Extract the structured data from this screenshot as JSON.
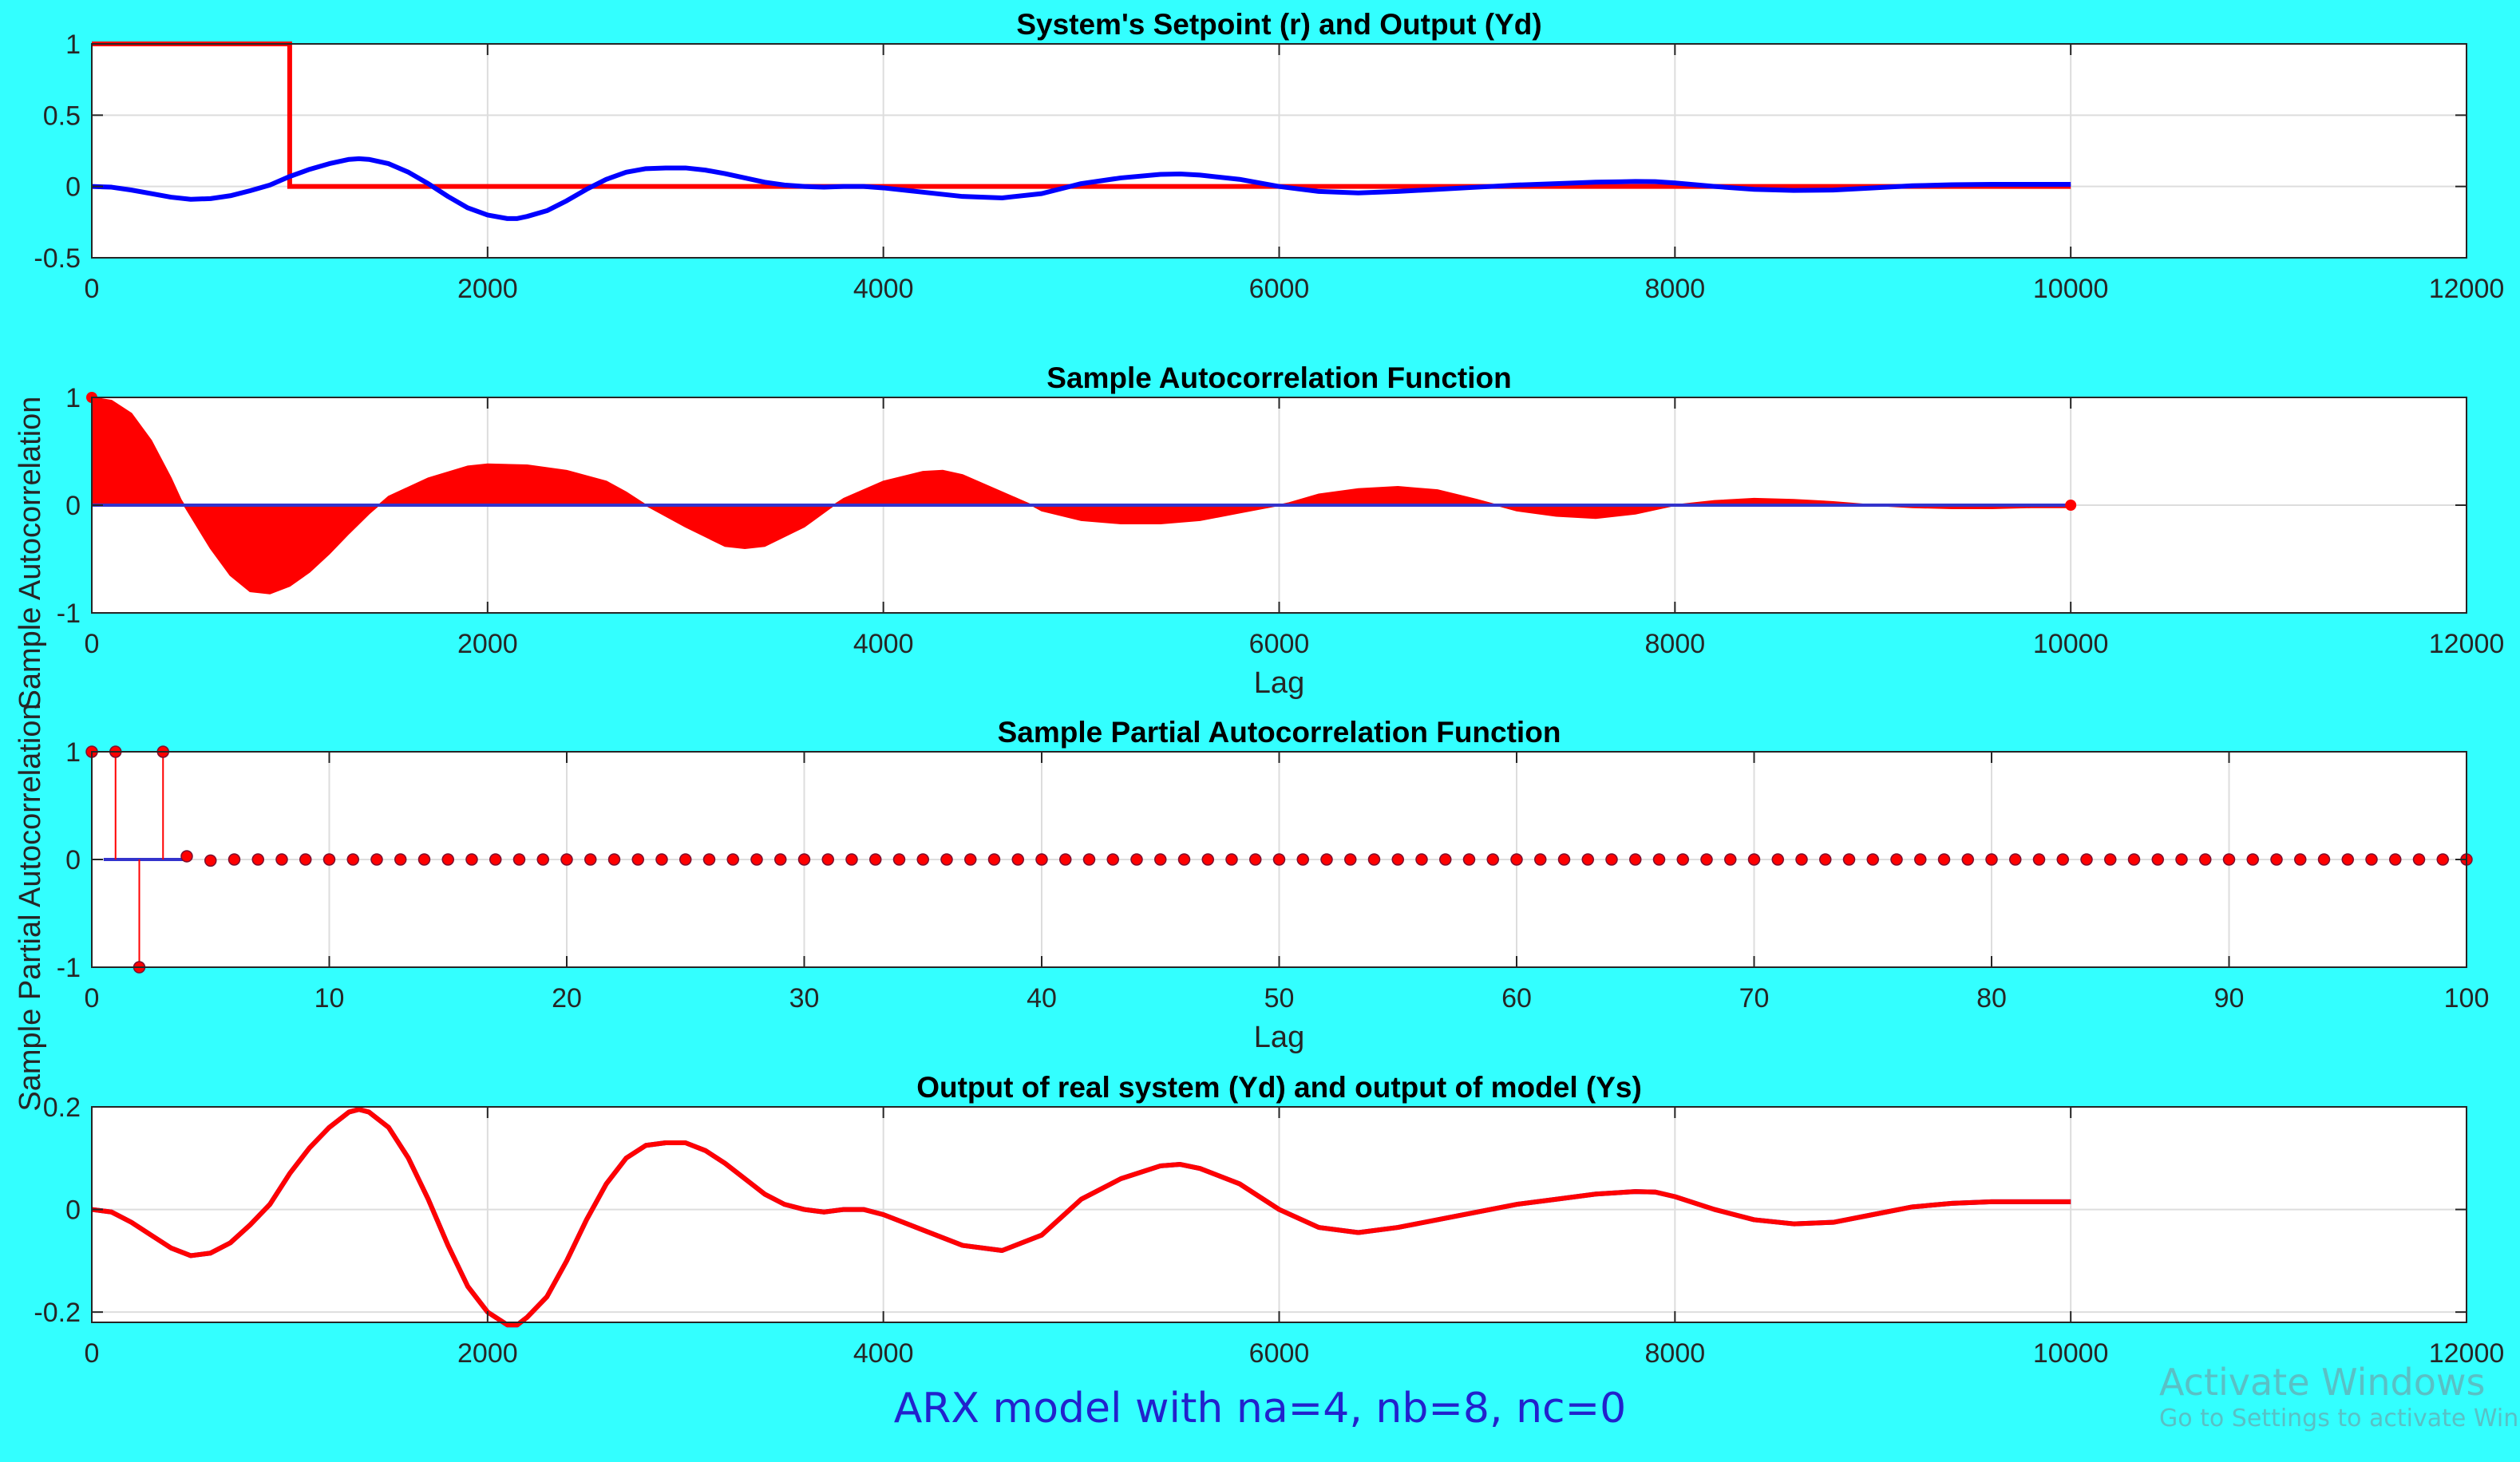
{
  "chart_data": [
    {
      "id": "setpoint_output",
      "type": "line",
      "title": "System's Setpoint (r) and Output (Yd)",
      "xlabel": "",
      "ylabel": "",
      "xlim": [
        0,
        12000
      ],
      "ylim": [
        -0.5,
        1
      ],
      "xticks": [
        0,
        2000,
        4000,
        6000,
        8000,
        10000,
        12000
      ],
      "yticks": [
        -0.5,
        0,
        0.5,
        1
      ],
      "yticklabels": [
        "-0.5",
        "0",
        "0.5",
        "1"
      ],
      "grid": true,
      "series": [
        {
          "color": "#FF0000",
          "style": "step",
          "x": [
            0,
            1000,
            1000,
            10000
          ],
          "y": [
            1,
            1,
            0,
            0
          ]
        },
        {
          "color": "#0000FF",
          "x": [
            0,
            100,
            200,
            300,
            400,
            500,
            600,
            700,
            800,
            900,
            1000,
            1100,
            1200,
            1300,
            1350,
            1400,
            1500,
            1600,
            1700,
            1800,
            1900,
            2000,
            2100,
            2150,
            2200,
            2300,
            2400,
            2500,
            2600,
            2700,
            2800,
            2900,
            3000,
            3100,
            3200,
            3300,
            3400,
            3500,
            3600,
            3700,
            3800,
            3900,
            4000,
            4200,
            4400,
            4600,
            4800,
            5000,
            5200,
            5400,
            5500,
            5600,
            5800,
            6000,
            6200,
            6400,
            6600,
            6800,
            7000,
            7200,
            7400,
            7600,
            7800,
            7900,
            8000,
            8200,
            8400,
            8600,
            8800,
            9000,
            9200,
            9400,
            9600,
            9800,
            10000
          ],
          "y": [
            0,
            -0.005,
            -0.025,
            -0.05,
            -0.075,
            -0.09,
            -0.085,
            -0.065,
            -0.03,
            0.01,
            0.07,
            0.12,
            0.16,
            0.19,
            0.195,
            0.19,
            0.16,
            0.1,
            0.02,
            -0.07,
            -0.15,
            -0.2,
            -0.225,
            -0.225,
            -0.21,
            -0.17,
            -0.1,
            -0.02,
            0.05,
            0.1,
            0.125,
            0.13,
            0.13,
            0.115,
            0.09,
            0.06,
            0.03,
            0.01,
            0.0,
            -0.005,
            0.0,
            0.0,
            -0.01,
            -0.04,
            -0.07,
            -0.08,
            -0.05,
            0.02,
            0.06,
            0.085,
            0.088,
            0.08,
            0.05,
            0.0,
            -0.035,
            -0.045,
            -0.035,
            -0.02,
            -0.005,
            0.01,
            0.02,
            0.03,
            0.035,
            0.034,
            0.025,
            0.0,
            -0.02,
            -0.028,
            -0.025,
            -0.01,
            0.005,
            0.012,
            0.015,
            0.015,
            0.015
          ]
        }
      ]
    },
    {
      "id": "acf",
      "type": "area",
      "title": "Sample Autocorrelation Function",
      "xlabel": "Lag",
      "ylabel": "Sample Autocorrelation",
      "xlim": [
        0,
        12000
      ],
      "ylim": [
        -1,
        1
      ],
      "xticks": [
        0,
        2000,
        4000,
        6000,
        8000,
        10000,
        12000
      ],
      "yticks": [
        -1,
        0,
        1
      ],
      "yticklabels": [
        "-1",
        "0",
        "1"
      ],
      "grid": true,
      "series": [
        {
          "color": "#FF0000",
          "style": "stem-dense",
          "x": [
            0,
            100,
            200,
            300,
            400,
            450,
            500,
            600,
            700,
            800,
            900,
            1000,
            1100,
            1200,
            1300,
            1400,
            1450,
            1500,
            1700,
            1900,
            2000,
            2200,
            2400,
            2600,
            2700,
            2800,
            3000,
            3200,
            3300,
            3400,
            3600,
            3750,
            3800,
            4000,
            4200,
            4300,
            4400,
            4600,
            4750,
            4800,
            5000,
            5200,
            5400,
            5600,
            5800,
            6000,
            6050,
            6200,
            6400,
            6600,
            6800,
            7000,
            7200,
            7400,
            7600,
            7800,
            8000,
            8200,
            8400,
            8600,
            8800,
            9000,
            9200,
            9400,
            9600,
            9800,
            10000
          ],
          "y": [
            1,
            0.97,
            0.85,
            0.6,
            0.25,
            0.05,
            -0.1,
            -0.4,
            -0.65,
            -0.8,
            -0.82,
            -0.75,
            -0.62,
            -0.45,
            -0.26,
            -0.08,
            0.0,
            0.08,
            0.25,
            0.36,
            0.38,
            0.37,
            0.32,
            0.22,
            0.12,
            0.0,
            -0.2,
            -0.38,
            -0.4,
            -0.38,
            -0.2,
            0.0,
            0.06,
            0.22,
            0.31,
            0.32,
            0.28,
            0.12,
            0.0,
            -0.05,
            -0.14,
            -0.17,
            -0.17,
            -0.14,
            -0.07,
            0.0,
            0.02,
            0.1,
            0.15,
            0.17,
            0.14,
            0.05,
            -0.05,
            -0.1,
            -0.12,
            -0.08,
            0.0,
            0.04,
            0.06,
            0.05,
            0.03,
            0.0,
            -0.02,
            -0.03,
            -0.03,
            -0.02,
            -0.02
          ]
        }
      ]
    },
    {
      "id": "pacf",
      "type": "scatter",
      "title": "Sample Partial Autocorrelation Function",
      "xlabel": "Lag",
      "ylabel": "Sample Partial Autocorrelation",
      "xlim": [
        0,
        100
      ],
      "ylim": [
        -1,
        1
      ],
      "xticks": [
        0,
        10,
        20,
        30,
        40,
        50,
        60,
        70,
        80,
        90,
        100
      ],
      "yticks": [
        -1,
        0,
        1
      ],
      "yticklabels": [
        "-1",
        "0",
        "1"
      ],
      "grid": true,
      "series": [
        {
          "color": "#FF0000",
          "style": "stem",
          "x": [
            0,
            1,
            2,
            3,
            4,
            5,
            6,
            7,
            8,
            9,
            10,
            11,
            12,
            13,
            14,
            15,
            16,
            17,
            18,
            19,
            20,
            21,
            22,
            23,
            24,
            25,
            26,
            27,
            28,
            29,
            30,
            31,
            32,
            33,
            34,
            35,
            36,
            37,
            38,
            39,
            40,
            41,
            42,
            43,
            44,
            45,
            46,
            47,
            48,
            49,
            50,
            51,
            52,
            53,
            54,
            55,
            56,
            57,
            58,
            59,
            60,
            61,
            62,
            63,
            64,
            65,
            66,
            67,
            68,
            69,
            70,
            71,
            72,
            73,
            74,
            75,
            76,
            77,
            78,
            79,
            80,
            81,
            82,
            83,
            84,
            85,
            86,
            87,
            88,
            89,
            90,
            91,
            92,
            93,
            94,
            95,
            96,
            97,
            98,
            99,
            100
          ],
          "y": [
            1,
            1,
            -1,
            1,
            0.03,
            -0.01,
            0,
            0,
            0,
            0,
            0,
            0,
            0,
            0,
            0,
            0,
            0,
            0,
            0,
            0,
            0,
            0,
            0,
            0,
            0,
            0,
            0,
            0,
            0,
            0,
            0,
            0,
            0,
            0,
            0,
            0,
            0,
            0,
            0,
            0,
            0,
            0,
            0,
            0,
            0,
            0,
            0,
            0,
            0,
            0,
            0,
            0,
            0,
            0,
            0,
            0,
            0,
            0,
            0,
            0,
            0,
            0,
            0,
            0,
            0,
            0,
            0,
            0,
            0,
            0,
            0,
            0,
            0,
            0,
            0,
            0,
            0,
            0,
            0,
            0,
            0,
            0,
            0,
            0,
            0,
            0,
            0,
            0,
            0,
            0,
            0,
            0,
            0,
            0,
            0,
            0,
            0,
            0,
            0,
            0,
            0
          ]
        }
      ]
    },
    {
      "id": "real_vs_model",
      "type": "line",
      "title": "Output of real system (Yd) and output of model (Ys)",
      "xlabel": "",
      "ylabel": "",
      "xlim": [
        0,
        12000
      ],
      "ylim": [
        -0.22,
        0.2
      ],
      "xticks": [
        0,
        2000,
        4000,
        6000,
        8000,
        10000,
        12000
      ],
      "yticks": [
        -0.2,
        0,
        0.2
      ],
      "yticklabels": [
        "-0.2",
        "0",
        "0.2"
      ],
      "grid": true,
      "series": [
        {
          "color": "#0000FF",
          "x": [
            0,
            100,
            200,
            300,
            400,
            500,
            600,
            700,
            800,
            900,
            1000,
            1100,
            1200,
            1300,
            1350,
            1400,
            1500,
            1600,
            1700,
            1800,
            1900,
            2000,
            2100,
            2150,
            2200,
            2300,
            2400,
            2500,
            2600,
            2700,
            2800,
            2900,
            3000,
            3100,
            3200,
            3300,
            3400,
            3500,
            3600,
            3700,
            3800,
            3900,
            4000,
            4200,
            4400,
            4600,
            4800,
            5000,
            5200,
            5400,
            5500,
            5600,
            5800,
            6000,
            6200,
            6400,
            6600,
            6800,
            7000,
            7200,
            7400,
            7600,
            7800,
            7900,
            8000,
            8200,
            8400,
            8600,
            8800,
            9000,
            9200,
            9400,
            9600,
            9800,
            10000
          ],
          "y": [
            0,
            -0.005,
            -0.025,
            -0.05,
            -0.075,
            -0.09,
            -0.085,
            -0.065,
            -0.03,
            0.01,
            0.07,
            0.12,
            0.16,
            0.19,
            0.195,
            0.19,
            0.16,
            0.1,
            0.02,
            -0.07,
            -0.15,
            -0.2,
            -0.225,
            -0.225,
            -0.21,
            -0.17,
            -0.1,
            -0.02,
            0.05,
            0.1,
            0.125,
            0.13,
            0.13,
            0.115,
            0.09,
            0.06,
            0.03,
            0.01,
            0.0,
            -0.005,
            0.0,
            0.0,
            -0.01,
            -0.04,
            -0.07,
            -0.08,
            -0.05,
            0.02,
            0.06,
            0.085,
            0.088,
            0.08,
            0.05,
            0.0,
            -0.035,
            -0.045,
            -0.035,
            -0.02,
            -0.005,
            0.01,
            0.02,
            0.03,
            0.035,
            0.034,
            0.025,
            0.0,
            -0.02,
            -0.028,
            -0.025,
            -0.01,
            0.005,
            0.012,
            0.015,
            0.015,
            0.015
          ]
        },
        {
          "color": "#FF0000",
          "x": [
            0,
            100,
            200,
            300,
            400,
            500,
            600,
            700,
            800,
            900,
            1000,
            1100,
            1200,
            1300,
            1350,
            1400,
            1500,
            1600,
            1700,
            1800,
            1900,
            2000,
            2100,
            2150,
            2200,
            2300,
            2400,
            2500,
            2600,
            2700,
            2800,
            2900,
            3000,
            3100,
            3200,
            3300,
            3400,
            3500,
            3600,
            3700,
            3800,
            3900,
            4000,
            4200,
            4400,
            4600,
            4800,
            5000,
            5200,
            5400,
            5500,
            5600,
            5800,
            6000,
            6200,
            6400,
            6600,
            6800,
            7000,
            7200,
            7400,
            7600,
            7800,
            7900,
            8000,
            8200,
            8400,
            8600,
            8800,
            9000,
            9200,
            9400,
            9600,
            9800,
            10000
          ],
          "y": [
            0,
            -0.005,
            -0.025,
            -0.05,
            -0.075,
            -0.09,
            -0.085,
            -0.065,
            -0.03,
            0.01,
            0.07,
            0.12,
            0.16,
            0.19,
            0.195,
            0.19,
            0.16,
            0.1,
            0.02,
            -0.07,
            -0.15,
            -0.2,
            -0.225,
            -0.225,
            -0.21,
            -0.17,
            -0.1,
            -0.02,
            0.05,
            0.1,
            0.125,
            0.13,
            0.13,
            0.115,
            0.09,
            0.06,
            0.03,
            0.01,
            0.0,
            -0.005,
            0.0,
            0.0,
            -0.01,
            -0.04,
            -0.07,
            -0.08,
            -0.05,
            0.02,
            0.06,
            0.085,
            0.088,
            0.08,
            0.05,
            0.0,
            -0.035,
            -0.045,
            -0.035,
            -0.02,
            -0.005,
            0.01,
            0.02,
            0.03,
            0.035,
            0.034,
            0.025,
            0.0,
            -0.02,
            -0.028,
            -0.025,
            -0.01,
            0.005,
            0.012,
            0.015,
            0.015,
            0.015
          ]
        }
      ]
    }
  ],
  "caption": "ARX model with na=4, nb=8, nc=0",
  "watermark": {
    "line1": "Activate Windows",
    "line2": "Go to Settings to activate Windows."
  },
  "colors": {
    "figure_background": "#33FFFF",
    "axes_background": "#FFFFFF",
    "caption_color": "#2222CC"
  }
}
